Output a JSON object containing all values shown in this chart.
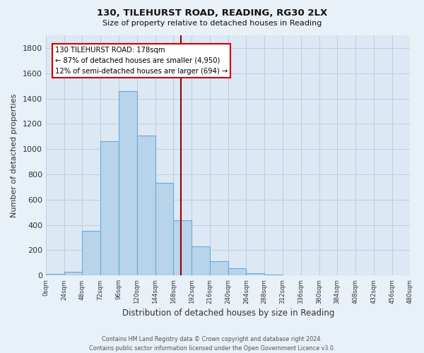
{
  "title": "130, TILEHURST ROAD, READING, RG30 2LX",
  "subtitle": "Size of property relative to detached houses in Reading",
  "xlabel": "Distribution of detached houses by size in Reading",
  "ylabel": "Number of detached properties",
  "bar_color": "#b8d4ea",
  "bar_edge_color": "#6aaad4",
  "background_color": "#e8f0f8",
  "plot_bg_color": "#dce8f4",
  "grid_color": "#c0cce0",
  "bin_edges": [
    0,
    24,
    48,
    72,
    96,
    120,
    144,
    168,
    192,
    216,
    240,
    264,
    288,
    312,
    336,
    360,
    384,
    408,
    432,
    456,
    480
  ],
  "counts": [
    15,
    30,
    355,
    1060,
    1460,
    1110,
    735,
    435,
    230,
    115,
    55,
    20,
    5,
    2,
    0,
    0,
    0,
    0,
    0,
    0
  ],
  "property_size": 178,
  "vline_color": "#990000",
  "annotation_line1": "130 TILEHURST ROAD: 178sqm",
  "annotation_line2": "← 87% of detached houses are smaller (4,950)",
  "annotation_line3": "12% of semi-detached houses are larger (694) →",
  "annotation_box_color": "#ffffff",
  "annotation_box_edge": "#cc0000",
  "ylim": [
    0,
    1900
  ],
  "yticks": [
    0,
    200,
    400,
    600,
    800,
    1000,
    1200,
    1400,
    1600,
    1800
  ],
  "tick_labels": [
    "0sqm",
    "24sqm",
    "48sqm",
    "72sqm",
    "96sqm",
    "120sqm",
    "144sqm",
    "168sqm",
    "192sqm",
    "216sqm",
    "240sqm",
    "264sqm",
    "288sqm",
    "312sqm",
    "336sqm",
    "360sqm",
    "384sqm",
    "408sqm",
    "432sqm",
    "456sqm",
    "480sqm"
  ],
  "footer_line1": "Contains HM Land Registry data © Crown copyright and database right 2024.",
  "footer_line2": "Contains public sector information licensed under the Open Government Licence v3.0."
}
